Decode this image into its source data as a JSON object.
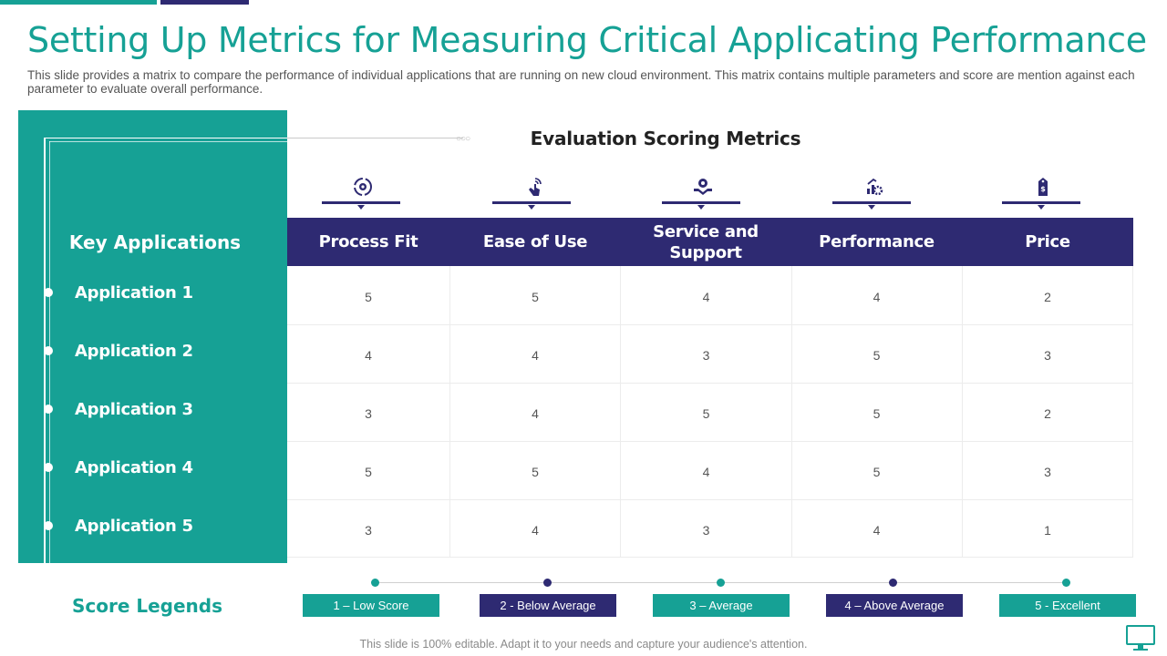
{
  "title": "Setting Up Metrics for Measuring Critical Applicating Performance",
  "subtitle": "This slide provides a matrix to compare the performance of individual  applications that are running on new cloud environment. This matrix contains multiple parameters and score are mention against each parameter to evaluate  overall performance.",
  "colors": {
    "teal": "#16a195",
    "navy": "#2e2a72"
  },
  "left_panel": {
    "heading": "Key Applications",
    "applications": [
      "Application 1",
      "Application 2",
      "Application 3",
      "Application 4",
      "Application 5"
    ]
  },
  "table": {
    "heading": "Evaluation Scoring Metrics",
    "icons": [
      "process-cycle-icon",
      "touch-hand-icon",
      "service-hand-gear-icon",
      "performance-gear-icon",
      "price-tag-icon"
    ],
    "columns": [
      "Process Fit",
      "Ease of Use",
      "Service and Support",
      "Performance",
      "Price"
    ],
    "rows": [
      [
        "5",
        "5",
        "4",
        "4",
        "2"
      ],
      [
        "4",
        "4",
        "3",
        "5",
        "3"
      ],
      [
        "3",
        "4",
        "5",
        "5",
        "2"
      ],
      [
        "5",
        "5",
        "4",
        "5",
        "3"
      ],
      [
        "3",
        "4",
        "3",
        "4",
        "1"
      ]
    ]
  },
  "legend": {
    "heading": "Score Legends",
    "items": [
      "1 – Low Score",
      "2 -  Below Average",
      "3 – Average",
      "4 – Above Average",
      "5 - Excellent"
    ]
  },
  "footer": "This slide is 100% editable. Adapt it to your needs and capture your audience's attention.",
  "footer_icon": "monitor-icon"
}
